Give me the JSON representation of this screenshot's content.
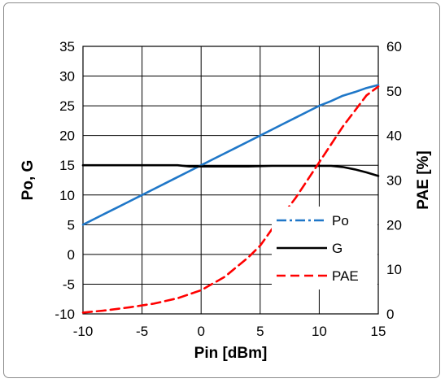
{
  "chart_data": {
    "type": "line",
    "xlabel": "Pin [dBm]",
    "ylabel_left": "Po, G",
    "ylabel_right": "PAE [%]",
    "xlim": [
      -10,
      15
    ],
    "ylim_left": [
      -10,
      35
    ],
    "ylim_right": [
      0,
      60
    ],
    "xticks": [
      -10,
      -5,
      0,
      5,
      10,
      15
    ],
    "yticks_left": [
      -10,
      -5,
      0,
      5,
      10,
      15,
      20,
      25,
      30,
      35
    ],
    "yticks_right": [
      0,
      10,
      20,
      30,
      40,
      50,
      60
    ],
    "grid": true,
    "legend_position": "bottom-right",
    "series": [
      {
        "name": "Po",
        "axis": "left",
        "color": "#1f77c8",
        "style": "dash-dot",
        "x": [
          -10,
          -9,
          -8,
          -7,
          -6,
          -5,
          -4,
          -3,
          -2,
          -1,
          0,
          1,
          2,
          3,
          4,
          5,
          6,
          7,
          8,
          9,
          10,
          11,
          12,
          13,
          14,
          15
        ],
        "y": [
          5,
          6,
          7,
          8,
          9,
          10,
          11,
          12,
          13,
          14,
          15,
          16,
          17,
          18,
          19,
          20,
          21,
          22,
          23,
          24,
          25,
          25.8,
          26.7,
          27.3,
          28,
          28.5
        ]
      },
      {
        "name": "G",
        "axis": "left",
        "color": "#000000",
        "style": "solid",
        "x": [
          -10,
          -8,
          -6,
          -4,
          -2,
          -1,
          0,
          2,
          4,
          6,
          8,
          10,
          11,
          12,
          13,
          14,
          15
        ],
        "y": [
          15,
          15,
          15,
          15,
          15,
          14.8,
          14.8,
          14.8,
          14.8,
          14.9,
          14.9,
          14.9,
          14.9,
          14.7,
          14.3,
          13.8,
          13.2
        ]
      },
      {
        "name": "PAE",
        "axis": "right",
        "color": "#ff0000",
        "style": "dashed",
        "x": [
          -10,
          -8,
          -6,
          -4,
          -2,
          0,
          2,
          4,
          5,
          6,
          8,
          10,
          12,
          14,
          15
        ],
        "y": [
          0.3,
          0.8,
          1.5,
          2.3,
          3.5,
          5.3,
          8.3,
          12.7,
          15.3,
          19,
          26,
          34,
          42,
          49,
          51
        ]
      }
    ]
  }
}
